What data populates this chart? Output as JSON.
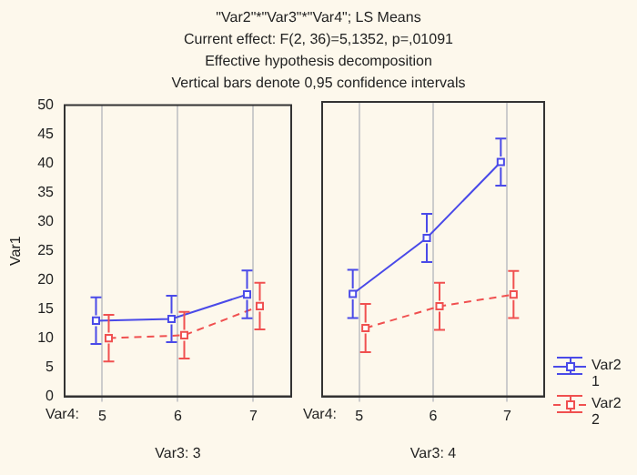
{
  "chart_data": [
    {
      "type": "line",
      "title": "\"Var2\"*\"Var3\"*\"Var4\"; LS Means",
      "subtitle": "Current effect: F(2, 36)=5,1352, p=,01091",
      "annotations": [
        "Effective hypothesis decomposition",
        "Vertical bars denote 0,95 confidence intervals",
        "Var4:"
      ],
      "xlabel": "Var3: 3",
      "ylabel": "Var1",
      "categories": [
        "5",
        "6",
        "7"
      ],
      "series": [
        {
          "color": "#4a4ae8",
          "values": [
            13,
            13.3,
            17.5
          ],
          "errors": [
            4,
            4,
            4.1
          ],
          "line_style": "solid"
        },
        {
          "color": "#f05050",
          "values": [
            10,
            10.5,
            15.5
          ],
          "errors": [
            4,
            4,
            4
          ],
          "line_style": "dashed"
        }
      ],
      "ylim": [
        0,
        50
      ],
      "yticks": [
        0,
        5,
        10,
        15,
        20,
        25,
        30,
        35,
        40,
        45,
        50
      ],
      "grid": "x",
      "marker": "square"
    },
    {
      "type": "line",
      "annotations": [
        "Var4:"
      ],
      "xlabel": "Var3: 4",
      "categories": [
        "5",
        "6",
        "7"
      ],
      "series": [
        {
          "name": "Var2 1",
          "color": "#4a4ae8",
          "values": [
            17.4,
            26.9,
            39.8
          ],
          "errors": [
            4.1,
            4.1,
            4
          ],
          "line_style": "solid"
        },
        {
          "name": "Var2 2",
          "color": "#f05050",
          "values": [
            11.6,
            15.3,
            17.3
          ],
          "errors": [
            4.1,
            4,
            4
          ],
          "line_style": "dashed"
        }
      ],
      "ylim": [
        0,
        50
      ],
      "yticks": [
        0,
        5,
        10,
        15,
        20,
        25,
        30,
        35,
        40,
        45,
        50
      ],
      "grid": "x",
      "marker": "square",
      "legend": "right",
      "tick_labels": "x"
    }
  ]
}
